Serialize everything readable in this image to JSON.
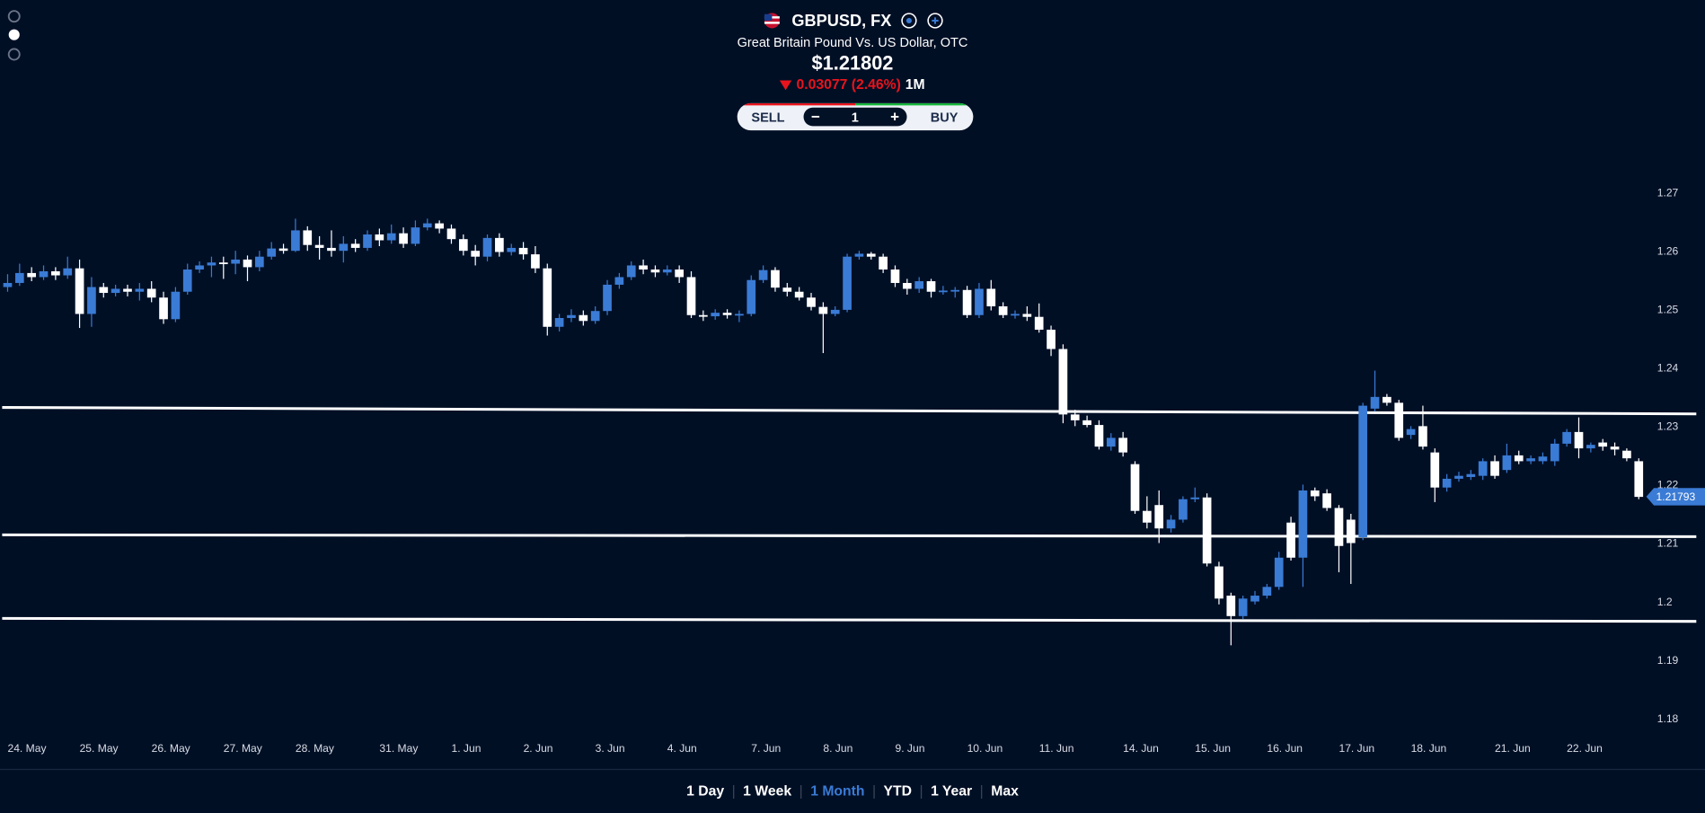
{
  "header": {
    "symbol": "GBPUSD, FX",
    "name": "Great Britain Pound Vs. US Dollar, OTC",
    "price": "$1.21802",
    "change": "0.03077 (2.46%)",
    "period": "1M"
  },
  "trade": {
    "sell": "SELL",
    "quantity": "1",
    "buy": "BUY"
  },
  "ranges": [
    "1 Day",
    "1 Week",
    "1 Month",
    "YTD",
    "1 Year",
    "Max"
  ],
  "active_range": 2,
  "chart_data": {
    "type": "candlestick",
    "up_color": "#3a7bd5",
    "down_color": "#ffffff",
    "line_color": "#ffffff",
    "ylim": [
      1.18,
      1.27
    ],
    "yticks": [
      1.18,
      1.19,
      1.2,
      1.21,
      1.22,
      1.23,
      1.24,
      1.25,
      1.26,
      1.27
    ],
    "last_price": 1.21793,
    "last_price_color": "#3a7bd5",
    "trend_lines": [
      [
        1.2332,
        1.2321
      ],
      [
        1.2114,
        1.2111
      ],
      [
        1.1971,
        1.1966
      ]
    ],
    "categories": [
      "24. May",
      null,
      null,
      null,
      null,
      null,
      "25. May",
      null,
      null,
      null,
      null,
      null,
      "26. May",
      null,
      null,
      null,
      null,
      null,
      "27. May",
      null,
      null,
      null,
      null,
      null,
      "28. May",
      null,
      null,
      null,
      null,
      null,
      null,
      "31. May",
      null,
      null,
      null,
      null,
      null,
      "1. Jun",
      null,
      null,
      null,
      null,
      null,
      "2. Jun",
      null,
      null,
      null,
      null,
      null,
      "3. Jun",
      null,
      null,
      null,
      null,
      null,
      "4. Jun",
      null,
      null,
      null,
      null,
      null,
      null,
      "7. Jun",
      null,
      null,
      null,
      null,
      null,
      "8. Jun",
      null,
      null,
      null,
      null,
      null,
      "9. Jun",
      null,
      null,
      null,
      null,
      null,
      "10. Jun",
      null,
      null,
      null,
      null,
      null,
      "11. Jun",
      null,
      null,
      null,
      null,
      null,
      null,
      "14. Jun",
      null,
      null,
      null,
      null,
      null,
      "15. Jun",
      null,
      null,
      null,
      null,
      null,
      "16. Jun",
      null,
      null,
      null,
      null,
      null,
      "17. Jun",
      null,
      null,
      null,
      null,
      null,
      "18. Jun",
      null,
      null,
      null,
      null,
      null,
      null,
      "21. Jun",
      null,
      null,
      null,
      null,
      null,
      "22. Jun",
      null,
      null,
      null,
      null,
      null,
      null
    ],
    "open": [
      1.2538,
      1.2545,
      1.2562,
      1.2555,
      1.2565,
      1.2558,
      1.257,
      1.2492,
      1.2538,
      1.2528,
      1.2535,
      1.253,
      1.2535,
      1.252,
      1.2483,
      1.253,
      1.2568,
      1.2575,
      1.258,
      1.2578,
      1.2585,
      1.2572,
      1.259,
      1.2604,
      1.26,
      1.2635,
      1.261,
      1.2605,
      1.26,
      1.2612,
      1.2605,
      1.2628,
      1.2618,
      1.263,
      1.2612,
      1.264,
      1.2647,
      1.2638,
      1.262,
      1.26,
      1.259,
      1.2622,
      1.2598,
      1.2605,
      1.2594,
      1.257,
      1.247,
      1.2485,
      1.249,
      1.248,
      1.2497,
      1.2542,
      1.2555,
      1.2575,
      1.2568,
      1.2563,
      1.2568,
      1.2555,
      1.249,
      1.2488,
      1.2494,
      1.249,
      1.2492,
      1.255,
      1.2567,
      1.2537,
      1.253,
      1.252,
      1.2504,
      1.2492,
      1.2499,
      1.259,
      1.2595,
      1.259,
      1.2568,
      1.2545,
      1.2535,
      1.2548,
      1.253,
      1.2532,
      1.2533,
      1.249,
      1.2535,
      1.2505,
      1.249,
      1.2492,
      1.2487,
      1.2465,
      1.2432,
      1.232,
      1.231,
      1.2302,
      1.2265,
      1.228,
      1.2235,
      1.2155,
      1.2165,
      1.2125,
      1.214,
      1.2175,
      1.2178,
      1.206,
      1.201,
      1.1975,
      1.2,
      1.201,
      1.2025,
      1.2135,
      1.2075,
      1.219,
      1.2185,
      1.216,
      1.214,
      1.211,
      1.233,
      1.235,
      1.234,
      1.2285,
      1.23,
      1.2255,
      1.2195,
      1.221,
      1.2213,
      1.2215,
      1.224,
      1.2225,
      1.225,
      1.224,
      1.224,
      1.224,
      1.227,
      1.229,
      1.2262,
      1.2272,
      1.2265,
      1.2258,
      1.224
    ],
    "high": [
      1.256,
      1.2578,
      1.2572,
      1.2575,
      1.2572,
      1.259,
      1.2585,
      1.2555,
      1.2545,
      1.2542,
      1.2542,
      1.2545,
      1.2548,
      1.253,
      1.2538,
      1.2578,
      1.2582,
      1.259,
      1.259,
      1.26,
      1.2592,
      1.26,
      1.2615,
      1.2612,
      1.2655,
      1.2642,
      1.2625,
      1.2635,
      1.2625,
      1.262,
      1.2635,
      1.2638,
      1.2645,
      1.264,
      1.2652,
      1.2655,
      1.2652,
      1.2645,
      1.2628,
      1.261,
      1.2628,
      1.263,
      1.2612,
      1.2615,
      1.2608,
      1.2578,
      1.2492,
      1.25,
      1.2498,
      1.2505,
      1.255,
      1.2562,
      1.2582,
      1.2585,
      1.2575,
      1.2575,
      1.2575,
      1.2565,
      1.2498,
      1.25,
      1.25,
      1.2498,
      1.2558,
      1.2575,
      1.2572,
      1.2545,
      1.2538,
      1.2528,
      1.2512,
      1.2505,
      1.2595,
      1.26,
      1.2598,
      1.2595,
      1.2575,
      1.2552,
      1.2555,
      1.2552,
      1.254,
      1.2538,
      1.254,
      1.2545,
      1.255,
      1.2512,
      1.2498,
      1.2505,
      1.251,
      1.2472,
      1.244,
      1.2328,
      1.2318,
      1.231,
      1.2288,
      1.229,
      1.224,
      1.218,
      1.219,
      1.2148,
      1.218,
      1.2195,
      1.2185,
      1.2068,
      1.2015,
      1.201,
      1.2018,
      1.203,
      1.2085,
      1.2145,
      1.22,
      1.2195,
      1.2192,
      1.2165,
      1.215,
      1.234,
      1.2395,
      1.2355,
      1.2345,
      1.23,
      1.2335,
      1.2262,
      1.2218,
      1.2222,
      1.2225,
      1.2245,
      1.225,
      1.227,
      1.2258,
      1.225,
      1.2255,
      1.2278,
      1.2295,
      1.2315,
      1.2272,
      1.2278,
      1.2272,
      1.2262,
      1.2245
    ],
    "low": [
      1.253,
      1.254,
      1.2548,
      1.255,
      1.255,
      1.2552,
      1.2468,
      1.247,
      1.252,
      1.2522,
      1.2522,
      1.2515,
      1.2512,
      1.2475,
      1.2478,
      1.2525,
      1.2562,
      1.2555,
      1.2552,
      1.256,
      1.2548,
      1.2565,
      1.2585,
      1.2595,
      1.2598,
      1.26,
      1.2585,
      1.259,
      1.258,
      1.2598,
      1.26,
      1.2608,
      1.2612,
      1.2605,
      1.2608,
      1.2635,
      1.263,
      1.2612,
      1.2592,
      1.2575,
      1.2582,
      1.259,
      1.2592,
      1.2585,
      1.2562,
      1.2455,
      1.2462,
      1.2478,
      1.2472,
      1.2475,
      1.249,
      1.2535,
      1.255,
      1.256,
      1.2555,
      1.2558,
      1.2545,
      1.2485,
      1.248,
      1.2482,
      1.2484,
      1.2478,
      1.2488,
      1.2545,
      1.253,
      1.2522,
      1.2515,
      1.2498,
      1.2425,
      1.2488,
      1.2495,
      1.2585,
      1.2585,
      1.2562,
      1.2538,
      1.2525,
      1.2528,
      1.252,
      1.2525,
      1.252,
      1.2485,
      1.2485,
      1.2498,
      1.2485,
      1.2484,
      1.248,
      1.246,
      1.242,
      1.2305,
      1.23,
      1.2298,
      1.226,
      1.2258,
      1.2248,
      1.215,
      1.2125,
      1.21,
      1.2118,
      1.2135,
      1.217,
      1.206,
      1.1995,
      1.1925,
      1.197,
      1.1995,
      1.2005,
      1.202,
      1.207,
      1.2025,
      1.2172,
      1.2155,
      1.205,
      1.203,
      1.2105,
      1.2325,
      1.2335,
      1.2275,
      1.2278,
      1.226,
      1.217,
      1.2188,
      1.2205,
      1.2208,
      1.2208,
      1.221,
      1.222,
      1.2235,
      1.2235,
      1.2235,
      1.2232,
      1.2265,
      1.2245,
      1.2255,
      1.2258,
      1.225,
      1.224,
      1.2175
    ],
    "close": [
      1.2545,
      1.2562,
      1.2555,
      1.2565,
      1.2558,
      1.257,
      1.2492,
      1.2538,
      1.2528,
      1.2535,
      1.253,
      1.2535,
      1.252,
      1.2483,
      1.253,
      1.2568,
      1.2575,
      1.258,
      1.2578,
      1.2585,
      1.2572,
      1.259,
      1.2604,
      1.26,
      1.2635,
      1.261,
      1.2605,
      1.26,
      1.2612,
      1.2605,
      1.2628,
      1.2618,
      1.263,
      1.2612,
      1.264,
      1.2647,
      1.2638,
      1.262,
      1.26,
      1.259,
      1.2622,
      1.2598,
      1.2605,
      1.2594,
      1.257,
      1.247,
      1.2485,
      1.249,
      1.248,
      1.2497,
      1.2542,
      1.2555,
      1.2575,
      1.2568,
      1.2563,
      1.2568,
      1.2555,
      1.249,
      1.2488,
      1.2494,
      1.249,
      1.2492,
      1.255,
      1.2567,
      1.2537,
      1.253,
      1.252,
      1.2504,
      1.2492,
      1.2499,
      1.259,
      1.2595,
      1.259,
      1.2568,
      1.2545,
      1.2535,
      1.2548,
      1.253,
      1.2532,
      1.2533,
      1.249,
      1.2535,
      1.2505,
      1.249,
      1.2492,
      1.2487,
      1.2465,
      1.2432,
      1.232,
      1.231,
      1.2302,
      1.2265,
      1.228,
      1.2255,
      1.2155,
      1.2135,
      1.2125,
      1.214,
      1.2175,
      1.2178,
      1.2065,
      1.2005,
      1.1975,
      1.2005,
      1.201,
      1.2025,
      1.2075,
      1.2075,
      1.219,
      1.218,
      1.216,
      1.2095,
      1.21,
      1.2335,
      1.235,
      1.234,
      1.228,
      1.2295,
      1.2265,
      1.2195,
      1.221,
      1.2215,
      1.2218,
      1.224,
      1.2215,
      1.225,
      1.224,
      1.2245,
      1.2248,
      1.227,
      1.229,
      1.2262,
      1.2268,
      1.2265,
      1.226,
      1.2245,
      1.2179
    ]
  }
}
